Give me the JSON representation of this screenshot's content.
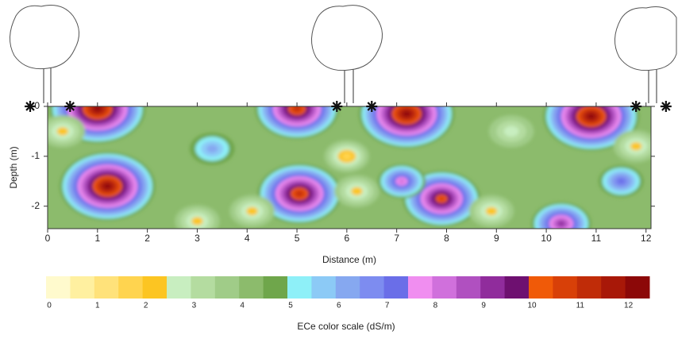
{
  "chart_data": {
    "type": "contour",
    "x_label": "Distance (m)",
    "y_label": "Depth (m)",
    "xlim": [
      0,
      12.1
    ],
    "ylim": [
      -2.45,
      0
    ],
    "xticks": [
      0,
      1,
      2,
      3,
      4,
      5,
      6,
      7,
      8,
      9,
      10,
      11,
      12
    ],
    "yticks": [
      0,
      -1,
      -2
    ],
    "background_value": 4,
    "hotspots": [
      {
        "x": 1.0,
        "depth": -0.05,
        "value": 12
      },
      {
        "x": 5.0,
        "depth": -0.05,
        "value": 11
      },
      {
        "x": 7.2,
        "depth": -0.15,
        "value": 12
      },
      {
        "x": 10.9,
        "depth": -0.2,
        "value": 12
      },
      {
        "x": 1.2,
        "depth": -1.6,
        "value": 12
      },
      {
        "x": 5.05,
        "depth": -1.75,
        "value": 11
      },
      {
        "x": 7.9,
        "depth": -1.85,
        "value": 10.5
      },
      {
        "x": 7.1,
        "depth": -1.5,
        "value": 8
      },
      {
        "x": 10.3,
        "depth": -2.35,
        "value": 9
      },
      {
        "x": 11.5,
        "depth": -1.5,
        "value": 7
      },
      {
        "x": 3.3,
        "depth": -0.85,
        "value": 6
      },
      {
        "x": 0.3,
        "depth": -0.5,
        "value": 2
      },
      {
        "x": 6.0,
        "depth": -1.0,
        "value": 1.5
      },
      {
        "x": 6.2,
        "depth": -1.7,
        "value": 2
      },
      {
        "x": 4.1,
        "depth": -2.1,
        "value": 2
      },
      {
        "x": 8.9,
        "depth": -2.1,
        "value": 2
      },
      {
        "x": 11.8,
        "depth": -0.8,
        "value": 2
      },
      {
        "x": 9.3,
        "depth": -0.5,
        "value": 2.5
      },
      {
        "x": 3.0,
        "depth": -2.3,
        "value": 2
      }
    ],
    "sensor_x": [
      -0.35,
      0.45,
      5.8,
      6.5,
      11.8,
      12.4
    ],
    "colorbar": {
      "label": "ECe color scale (dS/m)",
      "bins": [
        0,
        0.5,
        1,
        1.5,
        2,
        2.5,
        3,
        3.5,
        4,
        4.5,
        5,
        5.5,
        6,
        6.5,
        7,
        7.5,
        8,
        8.5,
        9,
        9.5,
        10,
        10.5,
        11,
        11.5,
        12,
        12.5
      ],
      "colors": [
        "#fffacd",
        "#fff0a0",
        "#ffe27a",
        "#ffd44f",
        "#fcc522",
        "#c8eec0",
        "#b4dca0",
        "#a0cc88",
        "#8cbb6c",
        "#6fa64b",
        "#8ef0f8",
        "#8ccaf6",
        "#86a8f0",
        "#7d8cf0",
        "#6a6ee8",
        "#f08ef0",
        "#d070dc",
        "#b050c0",
        "#902c9c",
        "#6e1070",
        "#f05a08",
        "#d84008",
        "#c02c08",
        "#a81808",
        "#8c0808"
      ],
      "ticks": [
        0,
        1,
        2,
        3,
        4,
        5,
        6,
        7,
        8,
        9,
        10,
        11,
        12
      ]
    }
  }
}
